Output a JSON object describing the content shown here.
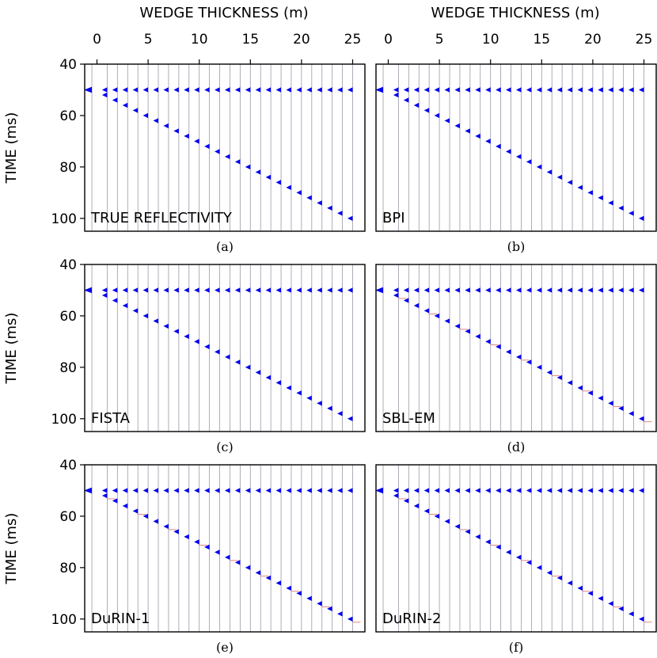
{
  "figure": {
    "top_axis_title": "WEDGE THICKNESS (m)",
    "left_axis_title": "TIME (ms)"
  },
  "colors": {
    "event": "#0000ee",
    "trace": "#9a9aa8",
    "residual": "#d9534f",
    "frame": "#000000"
  },
  "chart_data": {
    "type": "wiggle",
    "x_axis": {
      "label": "WEDGE THICKNESS (m)",
      "ticks": [
        0,
        5,
        10,
        15,
        20,
        25
      ],
      "range": [
        -1.2,
        26.2
      ]
    },
    "y_axis": {
      "label": "TIME (ms)",
      "ticks": [
        40,
        60,
        80,
        100
      ],
      "range": [
        40,
        105
      ],
      "inverted": true
    },
    "trace_thickness_m": [
      -0.5,
      1,
      2,
      3,
      4,
      5,
      6,
      7,
      8,
      9,
      10,
      11,
      12,
      13,
      14,
      15,
      16,
      17,
      18,
      19,
      20,
      21,
      22,
      23,
      24,
      25
    ],
    "top_reflector_time_ms": 50,
    "base_reflector_time_ms": "50 + 2 x thickness",
    "panels": [
      {
        "id": "a",
        "label": "TRUE REFLECTIVITY",
        "caption": "(a)"
      },
      {
        "id": "b",
        "label": "BPI",
        "caption": "(b)"
      },
      {
        "id": "c",
        "label": "FISTA",
        "caption": "(c)"
      },
      {
        "id": "d",
        "label": "SBL-EM",
        "caption": "(d)"
      },
      {
        "id": "e",
        "label": "DuRIN-1",
        "caption": "(e)"
      },
      {
        "id": "f",
        "label": "DuRIN-2",
        "caption": "(f)"
      }
    ]
  }
}
